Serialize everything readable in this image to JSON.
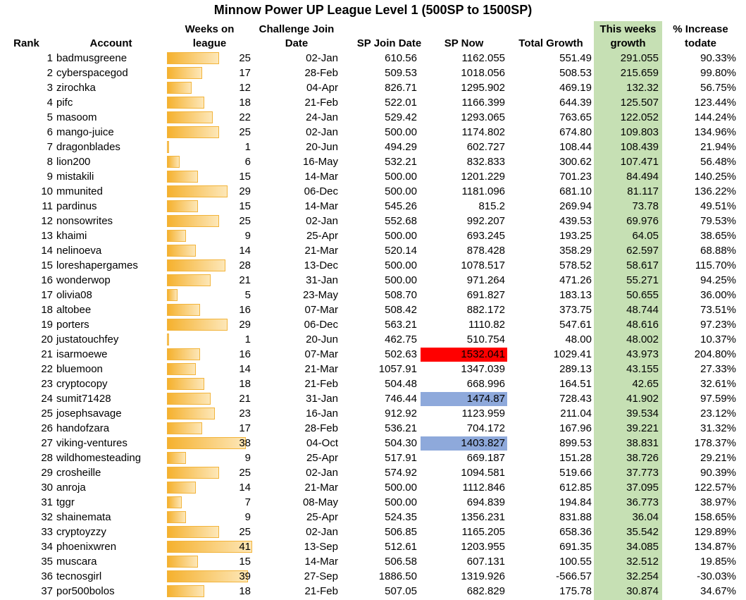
{
  "table": {
    "title": "Minnow Power UP League Level 1 (500SP to 1500SP)",
    "highlight_column_color": "#c6e0b4",
    "headers": {
      "rank": "Rank",
      "account": "Account",
      "weeks": "Weeks on league",
      "join_date": "Challenge Join Date",
      "sp_join": "SP Join Date",
      "sp_now": "SP Now",
      "total_growth": "Total Growth",
      "weekly_growth": "This weeks growth",
      "increase": "% Increase todate"
    },
    "rows": [
      {
        "rank": 1,
        "account": "badmusgreene",
        "weeks": 25,
        "join_date": "02-Jan",
        "sp_join": "610.56",
        "sp_now": "1162.055",
        "total_growth": "551.49",
        "weekly_growth": "291.055",
        "increase": "90.33%"
      },
      {
        "rank": 2,
        "account": "cyberspacegod",
        "weeks": 17,
        "join_date": "28-Feb",
        "sp_join": "509.53",
        "sp_now": "1018.056",
        "total_growth": "508.53",
        "weekly_growth": "215.659",
        "increase": "99.80%"
      },
      {
        "rank": 3,
        "account": "zirochka",
        "weeks": 12,
        "join_date": "04-Apr",
        "sp_join": "826.71",
        "sp_now": "1295.902",
        "total_growth": "469.19",
        "weekly_growth": "132.32",
        "increase": "56.75%"
      },
      {
        "rank": 4,
        "account": "pifc",
        "weeks": 18,
        "join_date": "21-Feb",
        "sp_join": "522.01",
        "sp_now": "1166.399",
        "total_growth": "644.39",
        "weekly_growth": "125.507",
        "increase": "123.44%"
      },
      {
        "rank": 5,
        "account": "masoom",
        "weeks": 22,
        "join_date": "24-Jan",
        "sp_join": "529.42",
        "sp_now": "1293.065",
        "total_growth": "763.65",
        "weekly_growth": "122.052",
        "increase": "144.24%"
      },
      {
        "rank": 6,
        "account": "mango-juice",
        "weeks": 25,
        "join_date": "02-Jan",
        "sp_join": "500.00",
        "sp_now": "1174.802",
        "total_growth": "674.80",
        "weekly_growth": "109.803",
        "increase": "134.96%"
      },
      {
        "rank": 7,
        "account": "dragonblades",
        "weeks": 1,
        "join_date": "20-Jun",
        "sp_join": "494.29",
        "sp_now": "602.727",
        "total_growth": "108.44",
        "weekly_growth": "108.439",
        "increase": "21.94%"
      },
      {
        "rank": 8,
        "account": "lion200",
        "weeks": 6,
        "join_date": "16-May",
        "sp_join": "532.21",
        "sp_now": "832.833",
        "total_growth": "300.62",
        "weekly_growth": "107.471",
        "increase": "56.48%"
      },
      {
        "rank": 9,
        "account": "mistakili",
        "weeks": 15,
        "join_date": "14-Mar",
        "sp_join": "500.00",
        "sp_now": "1201.229",
        "total_growth": "701.23",
        "weekly_growth": "84.494",
        "increase": "140.25%"
      },
      {
        "rank": 10,
        "account": "mmunited",
        "weeks": 29,
        "join_date": "06-Dec",
        "sp_join": "500.00",
        "sp_now": "1181.096",
        "total_growth": "681.10",
        "weekly_growth": "81.117",
        "increase": "136.22%"
      },
      {
        "rank": 11,
        "account": "pardinus",
        "weeks": 15,
        "join_date": "14-Mar",
        "sp_join": "545.26",
        "sp_now": "815.2",
        "total_growth": "269.94",
        "weekly_growth": "73.78",
        "increase": "49.51%"
      },
      {
        "rank": 12,
        "account": "nonsowrites",
        "weeks": 25,
        "join_date": "02-Jan",
        "sp_join": "552.68",
        "sp_now": "992.207",
        "total_growth": "439.53",
        "weekly_growth": "69.976",
        "increase": "79.53%"
      },
      {
        "rank": 13,
        "account": "khaimi",
        "weeks": 9,
        "join_date": "25-Apr",
        "sp_join": "500.00",
        "sp_now": "693.245",
        "total_growth": "193.25",
        "weekly_growth": "64.05",
        "increase": "38.65%"
      },
      {
        "rank": 14,
        "account": "nelinoeva",
        "weeks": 14,
        "join_date": "21-Mar",
        "sp_join": "520.14",
        "sp_now": "878.428",
        "total_growth": "358.29",
        "weekly_growth": "62.597",
        "increase": "68.88%"
      },
      {
        "rank": 15,
        "account": "loreshapergames",
        "weeks": 28,
        "join_date": "13-Dec",
        "sp_join": "500.00",
        "sp_now": "1078.517",
        "total_growth": "578.52",
        "weekly_growth": "58.617",
        "increase": "115.70%"
      },
      {
        "rank": 16,
        "account": "wonderwop",
        "weeks": 21,
        "join_date": "31-Jan",
        "sp_join": "500.00",
        "sp_now": "971.264",
        "total_growth": "471.26",
        "weekly_growth": "55.271",
        "increase": "94.25%"
      },
      {
        "rank": 17,
        "account": "olivia08",
        "weeks": 5,
        "join_date": "23-May",
        "sp_join": "508.70",
        "sp_now": "691.827",
        "total_growth": "183.13",
        "weekly_growth": "50.655",
        "increase": "36.00%"
      },
      {
        "rank": 18,
        "account": "altobee",
        "weeks": 16,
        "join_date": "07-Mar",
        "sp_join": "508.42",
        "sp_now": "882.172",
        "total_growth": "373.75",
        "weekly_growth": "48.744",
        "increase": "73.51%"
      },
      {
        "rank": 19,
        "account": "porters",
        "weeks": 29,
        "join_date": "06-Dec",
        "sp_join": "563.21",
        "sp_now": "1110.82",
        "total_growth": "547.61",
        "weekly_growth": "48.616",
        "increase": "97.23%"
      },
      {
        "rank": 20,
        "account": "justatouchfey",
        "weeks": 1,
        "join_date": "20-Jun",
        "sp_join": "462.75",
        "sp_now": "510.754",
        "total_growth": "48.00",
        "weekly_growth": "48.002",
        "increase": "10.37%"
      },
      {
        "rank": 21,
        "account": "isarmoewe",
        "weeks": 16,
        "join_date": "07-Mar",
        "sp_join": "502.63",
        "sp_now": "1532.041",
        "sp_now_color": "#ff0000",
        "total_growth": "1029.41",
        "weekly_growth": "43.973",
        "increase": "204.80%"
      },
      {
        "rank": 22,
        "account": "bluemoon",
        "weeks": 14,
        "join_date": "21-Mar",
        "sp_join": "1057.91",
        "sp_now": "1347.039",
        "total_growth": "289.13",
        "weekly_growth": "43.155",
        "increase": "27.33%"
      },
      {
        "rank": 23,
        "account": "cryptocopy",
        "weeks": 18,
        "join_date": "21-Feb",
        "sp_join": "504.48",
        "sp_now": "668.996",
        "total_growth": "164.51",
        "weekly_growth": "42.65",
        "increase": "32.61%"
      },
      {
        "rank": 24,
        "account": "sumit71428",
        "weeks": 21,
        "join_date": "31-Jan",
        "sp_join": "746.44",
        "sp_now": "1474.87",
        "sp_now_color": "#8ea9db",
        "total_growth": "728.43",
        "weekly_growth": "41.902",
        "increase": "97.59%"
      },
      {
        "rank": 25,
        "account": "josephsavage",
        "weeks": 23,
        "join_date": "16-Jan",
        "sp_join": "912.92",
        "sp_now": "1123.959",
        "total_growth": "211.04",
        "weekly_growth": "39.534",
        "increase": "23.12%"
      },
      {
        "rank": 26,
        "account": "handofzara",
        "weeks": 17,
        "join_date": "28-Feb",
        "sp_join": "536.21",
        "sp_now": "704.172",
        "total_growth": "167.96",
        "weekly_growth": "39.221",
        "increase": "31.32%"
      },
      {
        "rank": 27,
        "account": "viking-ventures",
        "weeks": 38,
        "join_date": "04-Oct",
        "sp_join": "504.30",
        "sp_now": "1403.827",
        "sp_now_color": "#8ea9db",
        "total_growth": "899.53",
        "weekly_growth": "38.831",
        "increase": "178.37%"
      },
      {
        "rank": 28,
        "account": "wildhomesteading",
        "weeks": 9,
        "join_date": "25-Apr",
        "sp_join": "517.91",
        "sp_now": "669.187",
        "total_growth": "151.28",
        "weekly_growth": "38.726",
        "increase": "29.21%"
      },
      {
        "rank": 29,
        "account": "crosheille",
        "weeks": 25,
        "join_date": "02-Jan",
        "sp_join": "574.92",
        "sp_now": "1094.581",
        "total_growth": "519.66",
        "weekly_growth": "37.773",
        "increase": "90.39%"
      },
      {
        "rank": 30,
        "account": "anroja",
        "weeks": 14,
        "join_date": "21-Mar",
        "sp_join": "500.00",
        "sp_now": "1112.846",
        "total_growth": "612.85",
        "weekly_growth": "37.095",
        "increase": "122.57%"
      },
      {
        "rank": 31,
        "account": "tggr",
        "weeks": 7,
        "join_date": "08-May",
        "sp_join": "500.00",
        "sp_now": "694.839",
        "total_growth": "194.84",
        "weekly_growth": "36.773",
        "increase": "38.97%"
      },
      {
        "rank": 32,
        "account": "shainemata",
        "weeks": 9,
        "join_date": "25-Apr",
        "sp_join": "524.35",
        "sp_now": "1356.231",
        "total_growth": "831.88",
        "weekly_growth": "36.04",
        "increase": "158.65%"
      },
      {
        "rank": 33,
        "account": "cryptoyzzy",
        "weeks": 25,
        "join_date": "02-Jan",
        "sp_join": "506.85",
        "sp_now": "1165.205",
        "total_growth": "658.36",
        "weekly_growth": "35.542",
        "increase": "129.89%"
      },
      {
        "rank": 34,
        "account": "phoenixwren",
        "weeks": 41,
        "join_date": "13-Sep",
        "sp_join": "512.61",
        "sp_now": "1203.955",
        "total_growth": "691.35",
        "weekly_growth": "34.085",
        "increase": "134.87%"
      },
      {
        "rank": 35,
        "account": "muscara",
        "weeks": 15,
        "join_date": "14-Mar",
        "sp_join": "506.58",
        "sp_now": "607.131",
        "total_growth": "100.55",
        "weekly_growth": "32.512",
        "increase": "19.85%"
      },
      {
        "rank": 36,
        "account": "tecnosgirl",
        "weeks": 39,
        "join_date": "27-Sep",
        "sp_join": "1886.50",
        "sp_now": "1319.926",
        "total_growth": "-566.57",
        "weekly_growth": "32.254",
        "increase": "-30.03%"
      },
      {
        "rank": 37,
        "account": "por500bolos",
        "weeks": 18,
        "join_date": "21-Feb",
        "sp_join": "507.05",
        "sp_now": "682.829",
        "total_growth": "175.78",
        "weekly_growth": "30.874",
        "increase": "34.67%"
      }
    ]
  }
}
